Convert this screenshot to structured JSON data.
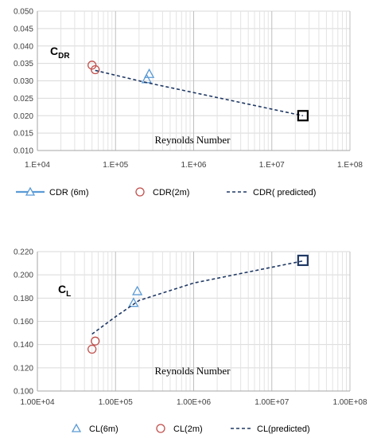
{
  "chart_data": [
    {
      "type": "scatter",
      "id": "cdr",
      "coef_main": "C",
      "coef_sub": "DR",
      "xlabel": "Reynolds Number",
      "xscale": "log",
      "xlim": [
        10000,
        100000000
      ],
      "ylim": [
        0.01,
        0.05
      ],
      "yticks": [
        "0.010",
        "0.015",
        "0.020",
        "0.025",
        "0.030",
        "0.035",
        "0.040",
        "0.045",
        "0.050"
      ],
      "xticks": [
        {
          "value": 10000,
          "label": "1.E+04"
        },
        {
          "value": 100000,
          "label": "1.E+05"
        },
        {
          "value": 1000000,
          "label": "1.E+06"
        },
        {
          "value": 10000000,
          "label": "1.E+07"
        },
        {
          "value": 100000000,
          "label": "1.E+08"
        }
      ],
      "grid": true,
      "legend_position": "bottom",
      "series": [
        {
          "name": "CDR (6m)",
          "marker": "triangle",
          "color": "#5b9bd5",
          "points": [
            [
              250000,
              0.0305
            ],
            [
              270000,
              0.032
            ]
          ]
        },
        {
          "name": "CDR(2m)",
          "marker": "circle",
          "color": "#c0504d",
          "points": [
            [
              50000,
              0.0345
            ],
            [
              55000,
              0.0332
            ]
          ]
        },
        {
          "name": "CDR( predicted)",
          "marker": "line-dashed",
          "color": "#1f3864",
          "points": [
            [
              55000,
              0.033
            ],
            [
              250000,
              0.0295
            ],
            [
              25000000,
              0.02
            ]
          ]
        }
      ],
      "highlight_point": {
        "x": 25000000,
        "y": 0.02,
        "color": "#000000"
      }
    },
    {
      "type": "scatter",
      "id": "cl",
      "coef_main": "C",
      "coef_sub": "L",
      "xlabel": "Reynolds Number",
      "xscale": "log",
      "xlim": [
        10000,
        100000000
      ],
      "ylim": [
        0.1,
        0.22
      ],
      "yticks": [
        "0.100",
        "0.120",
        "0.140",
        "0.160",
        "0.180",
        "0.200",
        "0.220"
      ],
      "xticks": [
        {
          "value": 10000,
          "label": "1.00E+04"
        },
        {
          "value": 100000,
          "label": "1.00E+05"
        },
        {
          "value": 1000000,
          "label": "1.00E+06"
        },
        {
          "value": 10000000,
          "label": "1.00E+07"
        },
        {
          "value": 100000000,
          "label": "1.00E+08"
        }
      ],
      "grid": true,
      "legend_position": "bottom",
      "series": [
        {
          "name": "CL(6m)",
          "marker": "triangle",
          "color": "#5b9bd5",
          "points": [
            [
              170000,
              0.176
            ],
            [
              190000,
              0.186
            ]
          ]
        },
        {
          "name": "CL(2m)",
          "marker": "circle",
          "color": "#c0504d",
          "points": [
            [
              50000,
              0.136
            ],
            [
              55000,
              0.143
            ]
          ]
        },
        {
          "name": "CL(predicted)",
          "marker": "line-dashed",
          "color": "#1f3864",
          "points": [
            [
              50000,
              0.149
            ],
            [
              100000,
              0.164
            ],
            [
              200000,
              0.178
            ],
            [
              1000000,
              0.193
            ],
            [
              25000000,
              0.212
            ]
          ]
        }
      ],
      "highlight_point": {
        "x": 25000000,
        "y": 0.2125,
        "color": "#1f3864"
      }
    }
  ]
}
